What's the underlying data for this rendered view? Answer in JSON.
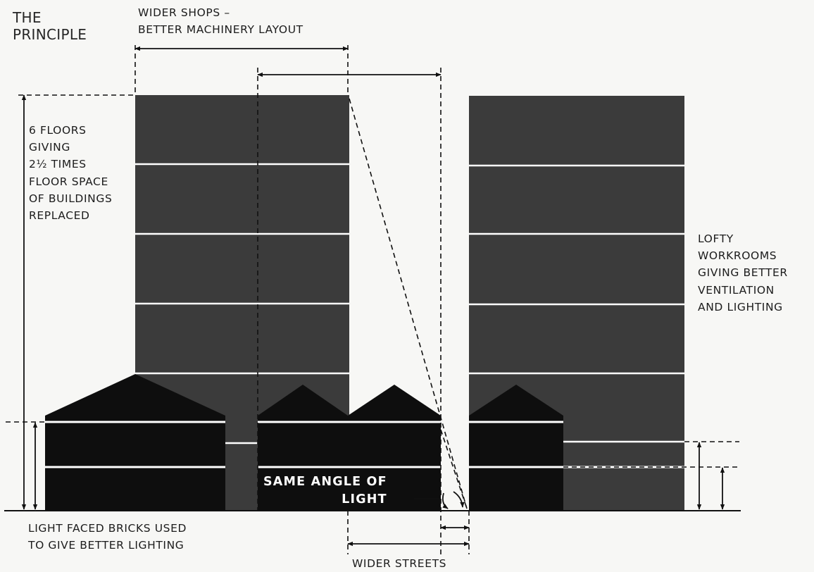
{
  "diagram": {
    "title": "THE\nPRINCIPLE",
    "labels": {
      "wider_shops": "WIDER SHOPS –\nBETTER MACHINERY LAYOUT",
      "six_floors": "6 FLOORS\nGIVING\n2½ TIMES\nFLOOR SPACE\nOF BUILDINGS\nREPLACED",
      "lofty": "LOFTY\nWORKROOMS\nGIVING BETTER\nVENTILATION\nAND LIGHTING",
      "same_angle": "SAME ANGLE OF\nLIGHT",
      "light_bricks": "LIGHT FACED BRICKS USED\nTO GIVE BETTER LIGHTING",
      "wider_streets": "WIDER STREETS"
    },
    "colors": {
      "background": "#f7f7f5",
      "new_building": "#3b3b3b",
      "old_building": "#0e0e0e",
      "lines": "#111111",
      "floor_lines": "#ffffff"
    }
  }
}
